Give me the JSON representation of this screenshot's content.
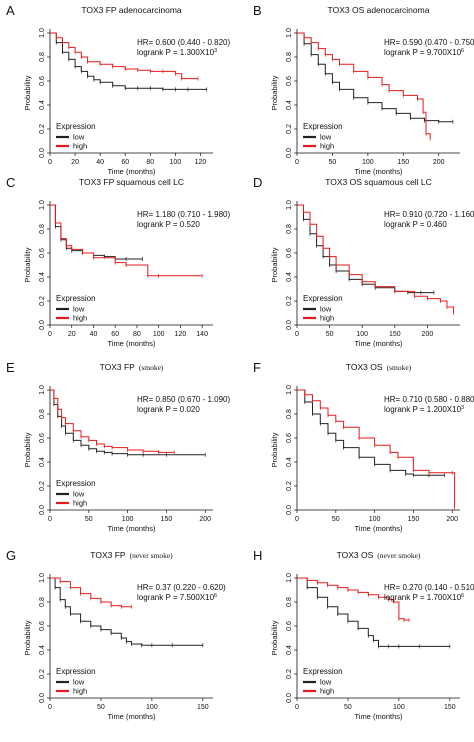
{
  "figure": {
    "panels": [
      {
        "letter": "A",
        "title_main": "TOX3 FP adenocarcinoma",
        "title_extra": "",
        "hr": "HR= 0.600 (0.440 - 0.820)",
        "logrank": "logrank P = 1.300X10",
        "logrank_exp": "3",
        "show_legend": true
      },
      {
        "letter": "B",
        "title_main": "TOX3 OS adenocarcinoma",
        "title_extra": "",
        "hr": "HR= 0.590 (0.470 - 0.750)",
        "logrank": "logrank P = 9.700X10",
        "logrank_exp": "6",
        "show_legend": true
      },
      {
        "letter": "C",
        "title_main": "TOX3 FP squamous cell LC",
        "title_extra": "",
        "hr": "HR= 1.180 (0.710 - 1.980)",
        "logrank": "logrank P = 0.520",
        "logrank_exp": "",
        "show_legend": true
      },
      {
        "letter": "D",
        "title_main": "TOX3 OS squamous cell LC",
        "title_extra": "",
        "hr": "HR= 0.910 (0.720 - 1.160)",
        "logrank": "logrank P = 0.460",
        "logrank_exp": "",
        "show_legend": true
      },
      {
        "letter": "E",
        "title_main": "TOX3 FP",
        "title_extra": "(smoke)",
        "hr": "HR= 0.850 (0.670 - 1.090)",
        "logrank": "logrank P = 0.020",
        "logrank_exp": "",
        "show_legend": true
      },
      {
        "letter": "F",
        "title_main": "TOX3 OS",
        "title_extra": "(smoke)",
        "hr": "HR= 0.710 (0.580 - 0.880)",
        "logrank": "logrank P = 1.200X10",
        "logrank_exp": "3",
        "show_legend": false
      },
      {
        "letter": "G",
        "title_main": "TOX3 FP",
        "title_extra": "(never smoke)",
        "hr": "HR= 0.37 (0.220 - 0.620)",
        "logrank": "logrank P = 7.500X10",
        "logrank_exp": "6",
        "show_legend": true
      },
      {
        "letter": "H",
        "title_main": "TOX3 OS",
        "title_extra": "(never smoke)",
        "hr": "HR= 0.270 (0.140 - 0.510)",
        "logrank": "logrank P = 1.700X10",
        "logrank_exp": "6",
        "show_legend": true
      }
    ],
    "legend": {
      "title": "Expression",
      "low": "low",
      "high": "high"
    },
    "axis": {
      "ylabel": "Probability",
      "xlabel": "Time (months)"
    },
    "colors": {
      "low": "#222222",
      "high": "#e41a1c",
      "axis": "#111111"
    }
  },
  "chart_data": [
    {
      "type": "line",
      "panel": "A",
      "title": "TOX3 FP adenocarcinoma",
      "xlabel": "Time (months)",
      "ylabel": "Probability",
      "xlim": [
        0,
        130
      ],
      "ylim": [
        0,
        1
      ],
      "xticks": [
        0,
        20,
        40,
        60,
        80,
        100,
        120
      ],
      "yticks": [
        0.0,
        0.2,
        0.4,
        0.6,
        0.8,
        1.0
      ],
      "series": [
        {
          "name": "low",
          "x": [
            0,
            5,
            10,
            15,
            20,
            25,
            30,
            35,
            40,
            50,
            60,
            70,
            80,
            90,
            100,
            110,
            125
          ],
          "y": [
            1,
            0.92,
            0.84,
            0.78,
            0.72,
            0.68,
            0.64,
            0.61,
            0.59,
            0.56,
            0.54,
            0.54,
            0.54,
            0.53,
            0.53,
            0.53,
            0.53
          ]
        },
        {
          "name": "high",
          "x": [
            0,
            5,
            10,
            15,
            20,
            25,
            30,
            40,
            50,
            60,
            70,
            80,
            90,
            100,
            105,
            118
          ],
          "y": [
            1,
            0.96,
            0.92,
            0.88,
            0.84,
            0.8,
            0.76,
            0.74,
            0.72,
            0.7,
            0.69,
            0.68,
            0.68,
            0.66,
            0.62,
            0.62
          ]
        }
      ]
    },
    {
      "type": "line",
      "panel": "B",
      "title": "TOX3 OS adenocarcinoma",
      "xlabel": "Time (months)",
      "ylabel": "Probability",
      "xlim": [
        0,
        230
      ],
      "ylim": [
        0,
        1
      ],
      "xticks": [
        0,
        50,
        100,
        150,
        200
      ],
      "yticks": [
        0.0,
        0.2,
        0.4,
        0.6,
        0.8,
        1.0
      ],
      "series": [
        {
          "name": "low",
          "x": [
            0,
            10,
            20,
            30,
            40,
            50,
            60,
            80,
            100,
            120,
            140,
            160,
            180,
            200,
            220
          ],
          "y": [
            1,
            0.91,
            0.82,
            0.74,
            0.66,
            0.59,
            0.53,
            0.46,
            0.42,
            0.37,
            0.33,
            0.29,
            0.27,
            0.26,
            0.26
          ]
        },
        {
          "name": "high",
          "x": [
            0,
            10,
            20,
            30,
            40,
            50,
            60,
            80,
            100,
            120,
            130,
            150,
            170,
            178,
            182,
            188
          ],
          "y": [
            1,
            0.96,
            0.92,
            0.87,
            0.82,
            0.78,
            0.74,
            0.68,
            0.63,
            0.57,
            0.52,
            0.48,
            0.45,
            0.34,
            0.16,
            0.12
          ]
        }
      ]
    },
    {
      "type": "line",
      "panel": "C",
      "title": "TOX3 FP squamous cell LC",
      "xlabel": "Time (months)",
      "ylabel": "Probability",
      "xlim": [
        0,
        150
      ],
      "ylim": [
        0,
        1
      ],
      "xticks": [
        0,
        20,
        40,
        60,
        80,
        100,
        120,
        140
      ],
      "yticks": [
        0.0,
        0.2,
        0.4,
        0.6,
        0.8,
        1.0
      ],
      "series": [
        {
          "name": "low",
          "x": [
            0,
            5,
            10,
            15,
            20,
            30,
            40,
            50,
            60,
            70,
            85
          ],
          "y": [
            1,
            0.82,
            0.71,
            0.64,
            0.62,
            0.6,
            0.58,
            0.57,
            0.55,
            0.55,
            0.55
          ]
        },
        {
          "name": "high",
          "x": [
            0,
            5,
            10,
            15,
            20,
            30,
            40,
            60,
            70,
            90,
            100,
            140
          ],
          "y": [
            1,
            0.85,
            0.72,
            0.66,
            0.63,
            0.6,
            0.56,
            0.52,
            0.5,
            0.41,
            0.41,
            0.41
          ]
        }
      ]
    },
    {
      "type": "line",
      "panel": "D",
      "title": "TOX3 OS squamous cell LC",
      "xlabel": "Time (months)",
      "ylabel": "Probability",
      "xlim": [
        0,
        250
      ],
      "ylim": [
        0,
        1
      ],
      "xticks": [
        0,
        50,
        100,
        150,
        200
      ],
      "yticks": [
        0.0,
        0.2,
        0.4,
        0.6,
        0.8,
        1.0
      ],
      "series": [
        {
          "name": "low",
          "x": [
            0,
            10,
            20,
            30,
            40,
            50,
            60,
            80,
            100,
            120,
            150,
            170,
            190,
            210
          ],
          "y": [
            1,
            0.88,
            0.76,
            0.66,
            0.57,
            0.5,
            0.45,
            0.38,
            0.34,
            0.31,
            0.28,
            0.27,
            0.27,
            0.27
          ]
        },
        {
          "name": "high",
          "x": [
            0,
            10,
            20,
            30,
            40,
            50,
            60,
            80,
            100,
            120,
            150,
            180,
            200,
            220,
            230,
            240
          ],
          "y": [
            1,
            0.94,
            0.84,
            0.74,
            0.64,
            0.57,
            0.5,
            0.42,
            0.36,
            0.32,
            0.28,
            0.24,
            0.22,
            0.2,
            0.15,
            0.1
          ]
        }
      ]
    },
    {
      "type": "line",
      "panel": "E",
      "title": "TOX3 FP (smoke)",
      "xlabel": "Time (months)",
      "ylabel": "Probability",
      "xlim": [
        0,
        210
      ],
      "ylim": [
        0,
        1
      ],
      "xticks": [
        0,
        50,
        100,
        150,
        200
      ],
      "yticks": [
        0.0,
        0.2,
        0.4,
        0.6,
        0.8,
        1.0
      ],
      "series": [
        {
          "name": "low",
          "x": [
            0,
            5,
            10,
            15,
            20,
            30,
            40,
            50,
            60,
            70,
            80,
            100,
            120,
            150,
            200
          ],
          "y": [
            1,
            0.88,
            0.78,
            0.7,
            0.64,
            0.58,
            0.54,
            0.51,
            0.49,
            0.48,
            0.47,
            0.46,
            0.46,
            0.46,
            0.46
          ]
        },
        {
          "name": "high",
          "x": [
            0,
            5,
            10,
            15,
            20,
            30,
            40,
            50,
            60,
            70,
            80,
            100,
            120,
            140,
            160
          ],
          "y": [
            1,
            0.93,
            0.84,
            0.77,
            0.72,
            0.66,
            0.61,
            0.58,
            0.55,
            0.53,
            0.52,
            0.5,
            0.49,
            0.48,
            0.48
          ]
        }
      ]
    },
    {
      "type": "line",
      "panel": "F",
      "title": "TOX3 OS (smoke)",
      "xlabel": "Time (months)",
      "ylabel": "Probability",
      "xlim": [
        0,
        210
      ],
      "ylim": [
        0,
        1
      ],
      "xticks": [
        0,
        50,
        100,
        150,
        200
      ],
      "yticks": [
        0.0,
        0.2,
        0.4,
        0.6,
        0.8,
        1.0
      ],
      "series": [
        {
          "name": "low",
          "x": [
            0,
            10,
            20,
            30,
            40,
            50,
            60,
            80,
            100,
            120,
            140,
            150,
            170,
            190
          ],
          "y": [
            1,
            0.9,
            0.8,
            0.72,
            0.64,
            0.58,
            0.52,
            0.44,
            0.38,
            0.33,
            0.3,
            0.29,
            0.29,
            0.29
          ]
        },
        {
          "name": "high",
          "x": [
            0,
            10,
            20,
            30,
            40,
            50,
            60,
            80,
            100,
            120,
            130,
            150,
            170,
            200,
            203
          ],
          "y": [
            1,
            0.96,
            0.91,
            0.85,
            0.79,
            0.74,
            0.69,
            0.6,
            0.54,
            0.48,
            0.44,
            0.33,
            0.31,
            0.31,
            0.02
          ]
        }
      ]
    },
    {
      "type": "line",
      "panel": "G",
      "title": "TOX3 FP (never smoke)",
      "xlabel": "Time (months)",
      "ylabel": "Probability",
      "xlim": [
        0,
        160
      ],
      "ylim": [
        0,
        1
      ],
      "xticks": [
        0,
        50,
        100,
        150
      ],
      "yticks": [
        0.0,
        0.2,
        0.4,
        0.6,
        0.8,
        1.0
      ],
      "series": [
        {
          "name": "low",
          "x": [
            0,
            5,
            10,
            15,
            20,
            30,
            40,
            50,
            60,
            70,
            75,
            80,
            90,
            100,
            120,
            150
          ],
          "y": [
            1,
            0.92,
            0.82,
            0.76,
            0.7,
            0.64,
            0.6,
            0.57,
            0.54,
            0.5,
            0.47,
            0.45,
            0.44,
            0.44,
            0.44,
            0.44
          ]
        },
        {
          "name": "high",
          "x": [
            0,
            10,
            20,
            30,
            40,
            50,
            60,
            70,
            80
          ],
          "y": [
            1,
            0.97,
            0.92,
            0.87,
            0.83,
            0.8,
            0.77,
            0.76,
            0.76
          ]
        }
      ]
    },
    {
      "type": "line",
      "panel": "H",
      "title": "TOX3 OS (never smoke)",
      "xlabel": "Time (months)",
      "ylabel": "Probability",
      "xlim": [
        0,
        160
      ],
      "ylim": [
        0,
        1
      ],
      "xticks": [
        0,
        50,
        100,
        150
      ],
      "yticks": [
        0.0,
        0.2,
        0.4,
        0.6,
        0.8,
        1.0
      ],
      "series": [
        {
          "name": "low",
          "x": [
            0,
            10,
            20,
            30,
            40,
            50,
            60,
            70,
            75,
            80,
            90,
            100,
            120,
            150
          ],
          "y": [
            1,
            0.92,
            0.84,
            0.76,
            0.7,
            0.64,
            0.58,
            0.52,
            0.48,
            0.43,
            0.43,
            0.43,
            0.43,
            0.43
          ]
        },
        {
          "name": "high",
          "x": [
            0,
            10,
            20,
            30,
            40,
            50,
            60,
            70,
            80,
            90,
            95,
            100,
            105,
            110
          ],
          "y": [
            1,
            0.98,
            0.96,
            0.94,
            0.92,
            0.9,
            0.88,
            0.86,
            0.84,
            0.82,
            0.8,
            0.66,
            0.65,
            0.65
          ]
        }
      ]
    }
  ]
}
